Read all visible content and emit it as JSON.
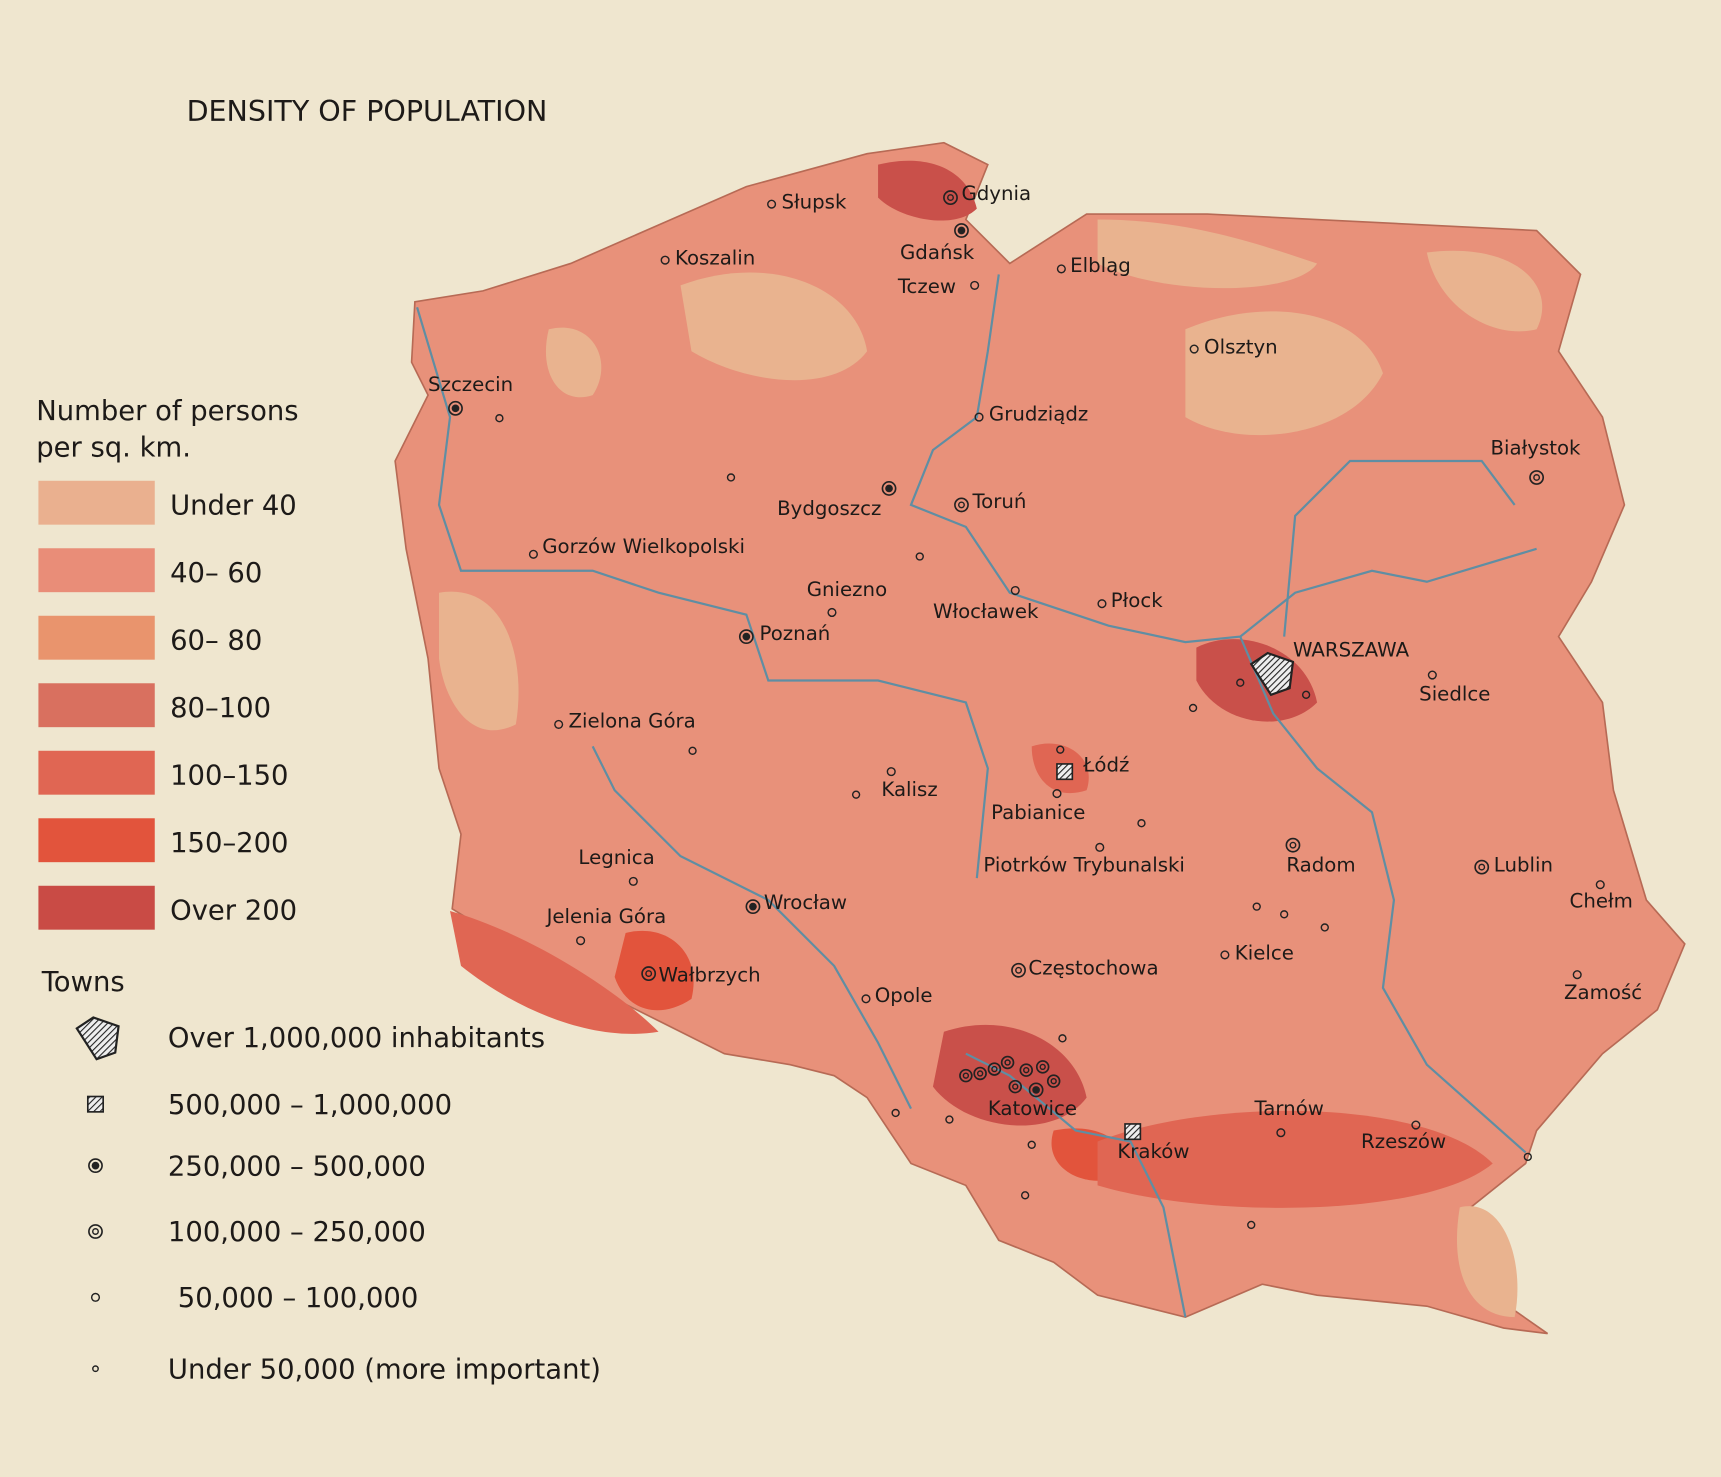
{
  "title": "DENSITY OF POPULATION",
  "density_legend": {
    "title": [
      "Number of persons",
      "per sq. km."
    ],
    "classes": [
      "Under 40",
      "40– 60",
      "60– 80",
      "80–100",
      "100–150",
      "150–200",
      "Over 200"
    ]
  },
  "towns_legend": {
    "title": "Towns",
    "classes": [
      "Over 1,000,000 inhabitants",
      "500,000 – 1,000,000",
      "250,000 –   500,000",
      "100,000 –   250,000",
      "50,000 –   100,000",
      "Under 50,000 (more important)"
    ]
  },
  "towns": [
    "Słupsk",
    "Gdynia",
    "Gdańsk",
    "Koszalin",
    "Elbląg",
    "Tczew",
    "Olsztyn",
    "Szczecin",
    "Grudziądz",
    "Białystok",
    "Bydgoszcz",
    "Toruń",
    "Gorzów Wielkopolski",
    "Gniezno",
    "Włocławek",
    "Płock",
    "Poznań",
    "WARSZAWA",
    "Siedlce",
    "Zielona Góra",
    "Łódź",
    "Kalisz",
    "Pabianice",
    "Piotrków Trybunalski",
    "Radom",
    "Lublin",
    "Legnica",
    "Chełm",
    "Jelenia Góra",
    "Wrocław",
    "Kielce",
    "Wałbrzych",
    "Częstochowa",
    "Opole",
    "Zamość",
    "Katowice",
    "Tarnów",
    "Rzeszów",
    "Kraków"
  ]
}
